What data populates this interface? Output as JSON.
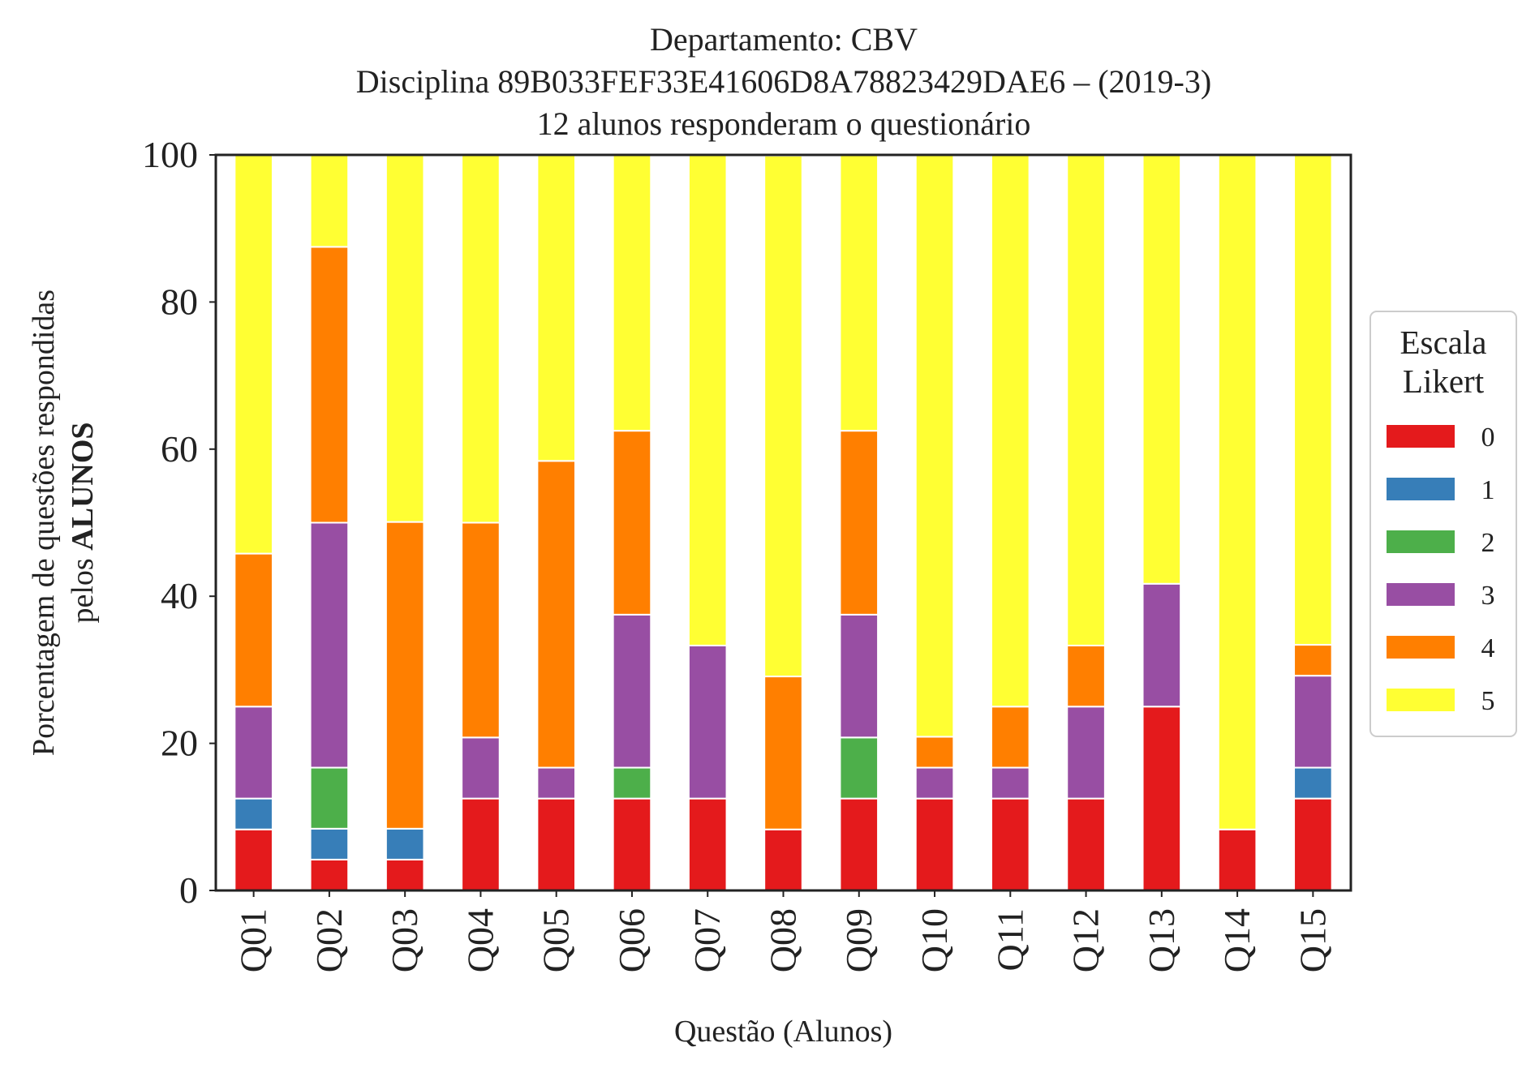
{
  "chart_data": {
    "type": "bar",
    "stacked": true,
    "title_lines": [
      "Departamento: CBV",
      "Disciplina 89B033FEF33E41606D8A78823429DAE6 – (2019-3)",
      "12 alunos responderam o questionário"
    ],
    "xlabel": "Questão (Alunos)",
    "ylabel_line1": "Porcentagem de questões respondidas",
    "ylabel_line2_prefix": "pelos ",
    "ylabel_line2_bold": "ALUNOS",
    "ylim": [
      0,
      100
    ],
    "yticks": [
      "0",
      "20",
      "40",
      "60",
      "80",
      "100"
    ],
    "grid": false,
    "legend": {
      "title_line1": "Escala",
      "title_line2": "Likert",
      "placement": "right"
    },
    "categories": [
      "Q01",
      "Q02",
      "Q03",
      "Q04",
      "Q05",
      "Q06",
      "Q07",
      "Q08",
      "Q09",
      "Q10",
      "Q11",
      "Q12",
      "Q13",
      "Q14",
      "Q15"
    ],
    "series": [
      {
        "name": "0",
        "color": "#e41a1c",
        "values": [
          8.3,
          4.2,
          4.2,
          12.5,
          12.5,
          12.5,
          12.5,
          8.3,
          12.5,
          12.5,
          12.5,
          12.5,
          25.0,
          8.3,
          12.5
        ]
      },
      {
        "name": "1",
        "color": "#377eb8",
        "values": [
          4.2,
          4.2,
          4.2,
          0,
          0,
          0,
          0,
          0,
          0,
          0,
          0,
          0,
          0,
          0,
          4.2
        ]
      },
      {
        "name": "2",
        "color": "#4daf4a",
        "values": [
          0,
          8.3,
          0,
          0,
          0,
          4.2,
          0,
          0,
          8.3,
          0,
          0,
          0,
          0,
          0,
          0
        ]
      },
      {
        "name": "3",
        "color": "#984ea3",
        "values": [
          12.5,
          33.3,
          0,
          8.3,
          4.2,
          20.8,
          20.8,
          0,
          16.7,
          4.2,
          4.2,
          12.5,
          16.7,
          0,
          12.5
        ]
      },
      {
        "name": "4",
        "color": "#ff7f00",
        "values": [
          20.8,
          37.5,
          41.7,
          29.2,
          41.7,
          25.0,
          0,
          20.8,
          25.0,
          4.2,
          8.3,
          8.3,
          0,
          0,
          4.2
        ]
      },
      {
        "name": "5",
        "color": "#ffff33",
        "values": [
          54.2,
          12.5,
          50.0,
          50.0,
          41.7,
          37.5,
          66.7,
          70.8,
          37.5,
          79.2,
          75.0,
          66.7,
          58.3,
          91.7,
          66.7
        ]
      }
    ]
  }
}
